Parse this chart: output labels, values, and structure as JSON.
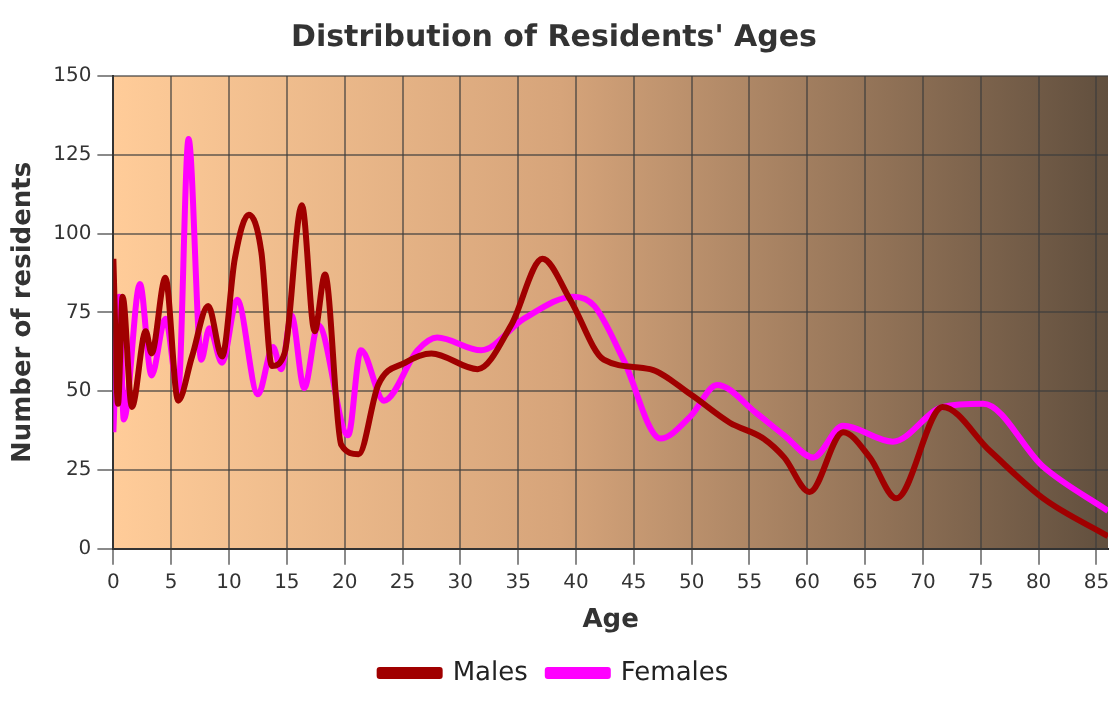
{
  "chart_data": {
    "type": "line",
    "title": "Distribution of Residents' Ages",
    "xlabel": "Age",
    "ylabel": "Number of residents",
    "xlim": [
      0,
      86
    ],
    "xticks": [
      0,
      5,
      10,
      15,
      20,
      25,
      30,
      35,
      40,
      45,
      50,
      55,
      60,
      65,
      70,
      75,
      80,
      85
    ],
    "ylim": [
      0,
      150
    ],
    "yticks": [
      0,
      25,
      50,
      75,
      100,
      125,
      150
    ],
    "grid": true,
    "legend": "bottom",
    "marker": "none",
    "line_style": "solid",
    "series": [
      {
        "name": "Males",
        "color": "#a00000",
        "x": [
          0,
          0.4,
          0.8,
          1.6,
          2.8,
          3.3,
          4.5,
          5.6,
          6.8,
          8.2,
          9.4,
          10.5,
          11.7,
          12.8,
          13.7,
          14.8,
          16.3,
          17.4,
          18.3,
          19.7,
          21.2,
          22.9,
          25.2,
          27.5,
          31.5,
          34.4,
          37.1,
          39.5,
          42.4,
          46.4,
          49.9,
          53.3,
          56.2,
          58,
          60.2,
          63.1,
          65.4,
          67.7,
          71.7,
          75.8,
          80.4,
          86
        ],
        "values": [
          92,
          46,
          80,
          45,
          69,
          62,
          86,
          47,
          61,
          77,
          61,
          92,
          106,
          94,
          58,
          62,
          109,
          69,
          87,
          33,
          30,
          52,
          59,
          62,
          57,
          71,
          92,
          79,
          60,
          57,
          49,
          40,
          35,
          29,
          18,
          37,
          29,
          16,
          45,
          31,
          16,
          4
        ]
      },
      {
        "name": "Females",
        "color": "#ff00ff",
        "x": [
          0,
          0.5,
          0.9,
          2.3,
          3.3,
          4.5,
          5.6,
          6.5,
          7.6,
          8.3,
          9.4,
          10.7,
          12.5,
          13.8,
          14.5,
          15.4,
          16.5,
          17.7,
          20.3,
          21.4,
          23.4,
          26.3,
          28,
          31.8,
          35.5,
          39.8,
          41.6,
          44.1,
          47.3,
          49.9,
          52.2,
          55.6,
          58,
          60.5,
          63.1,
          67.4,
          71.7,
          75.2,
          80.4,
          86
        ],
        "values": [
          37,
          80,
          41,
          84,
          55,
          73,
          50,
          130,
          60,
          70,
          59,
          79,
          49,
          64,
          57,
          74,
          51,
          71,
          36,
          63,
          47,
          63,
          67,
          63,
          73,
          80,
          77,
          60,
          35,
          42,
          52,
          43,
          36,
          29,
          39,
          34,
          45,
          46,
          26,
          12
        ]
      }
    ]
  }
}
